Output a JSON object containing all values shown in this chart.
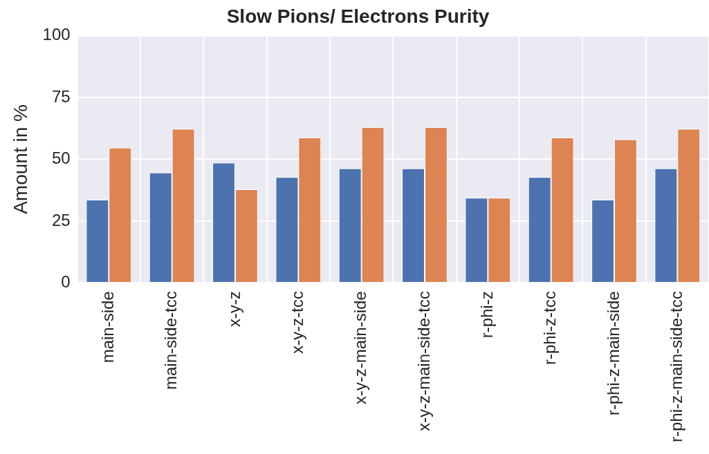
{
  "chart_data": {
    "type": "bar",
    "title": "Slow Pions/ Electrons Purity",
    "ylabel": "Amount in %",
    "categories": [
      "main-side",
      "main-side-tcc",
      "x-y-z",
      "x-y-z-tcc",
      "x-y-z-main-side",
      "x-y-z-main-side-tcc",
      "r-phi-z",
      "r-phi-z-tcc",
      "r-phi-z-main-side",
      "r-phi-z-main-side-tcc"
    ],
    "series": [
      {
        "color": "#4c72b0",
        "values": [
          33.6,
          44.6,
          48.6,
          42.8,
          46.3,
          46.3,
          34.4,
          42.8,
          33.6,
          46.3
        ]
      },
      {
        "color": "#dd8452",
        "values": [
          54.7,
          62.3,
          37.8,
          58.8,
          63.0,
          63.0,
          34.4,
          58.8,
          58.0,
          62.3
        ]
      }
    ],
    "ylim": [
      0,
      100
    ],
    "yticks": [
      0,
      25,
      50,
      75,
      100
    ],
    "grid": true,
    "legend": false
  }
}
